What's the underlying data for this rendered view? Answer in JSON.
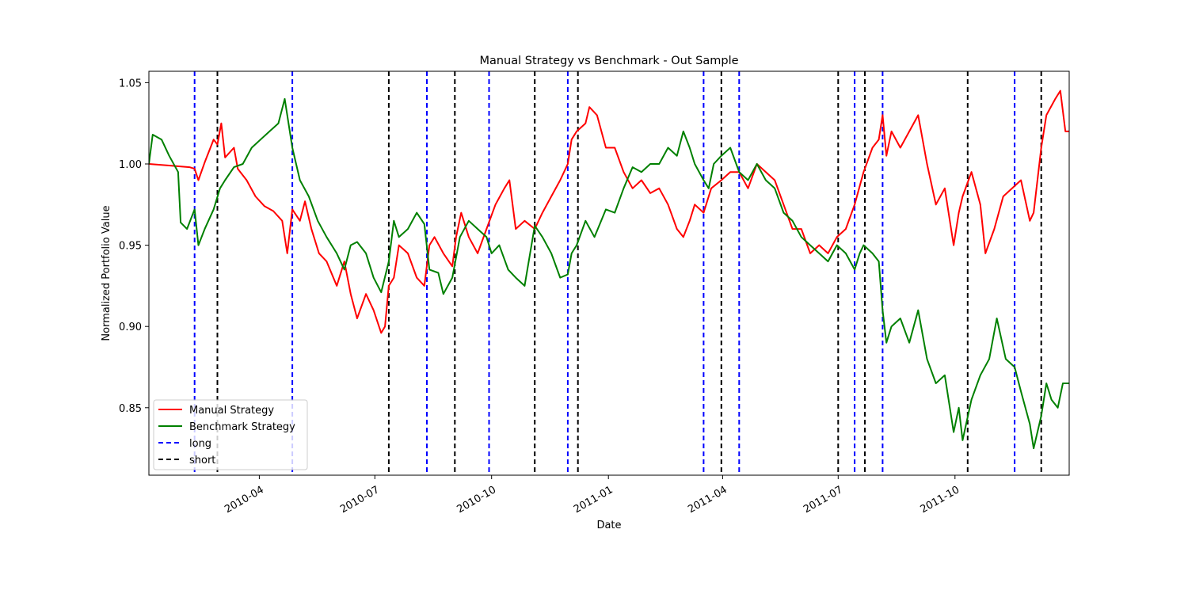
{
  "chart_data": {
    "type": "line",
    "title": "Manual Strategy vs Benchmark - Out Sample",
    "xlabel": "Date",
    "ylabel": "Normalized Portfolio Value",
    "xlim": [
      "2010-01-04",
      "2011-12-30"
    ],
    "ylim": [
      0.8085,
      1.057
    ],
    "y_ticks": [
      0.85,
      0.9,
      0.95,
      1.0,
      1.05
    ],
    "y_tick_labels": [
      "0.85",
      "0.90",
      "0.95",
      "1.00",
      "1.05"
    ],
    "x_ticks": [
      "2010-04-01",
      "2010-07-01",
      "2010-10-01",
      "2011-01-01",
      "2011-04-01",
      "2011-07-01",
      "2011-10-01"
    ],
    "x_tick_labels": [
      "2010-04",
      "2010-07",
      "2010-10",
      "2011-01",
      "2011-04",
      "2011-07",
      "2011-10"
    ],
    "grid": false,
    "legend_position": "lower-left",
    "series": [
      {
        "name": "Manual Strategy",
        "color": "#ff0000",
        "points": [
          [
            "2010-01-04",
            1.0
          ],
          [
            "2010-01-20",
            0.999
          ],
          [
            "2010-02-05",
            0.998
          ],
          [
            "2010-02-09",
            0.997
          ],
          [
            "2010-02-12",
            0.99
          ],
          [
            "2010-02-17",
            1.001
          ],
          [
            "2010-02-24",
            1.015
          ],
          [
            "2010-02-27",
            1.012
          ],
          [
            "2010-03-02",
            1.025
          ],
          [
            "2010-03-05",
            1.004
          ],
          [
            "2010-03-12",
            1.01
          ],
          [
            "2010-03-15",
            0.997
          ],
          [
            "2010-03-22",
            0.99
          ],
          [
            "2010-03-29",
            0.98
          ],
          [
            "2010-04-05",
            0.974
          ],
          [
            "2010-04-12",
            0.971
          ],
          [
            "2010-04-19",
            0.965
          ],
          [
            "2010-04-23",
            0.945
          ],
          [
            "2010-04-27",
            0.972
          ],
          [
            "2010-05-03",
            0.965
          ],
          [
            "2010-05-07",
            0.977
          ],
          [
            "2010-05-12",
            0.96
          ],
          [
            "2010-05-18",
            0.945
          ],
          [
            "2010-05-24",
            0.94
          ],
          [
            "2010-06-01",
            0.925
          ],
          [
            "2010-06-07",
            0.94
          ],
          [
            "2010-06-12",
            0.92
          ],
          [
            "2010-06-17",
            0.905
          ],
          [
            "2010-06-24",
            0.92
          ],
          [
            "2010-06-30",
            0.91
          ],
          [
            "2010-07-06",
            0.896
          ],
          [
            "2010-07-09",
            0.9
          ],
          [
            "2010-07-12",
            0.925
          ],
          [
            "2010-07-16",
            0.93
          ],
          [
            "2010-07-20",
            0.95
          ],
          [
            "2010-07-27",
            0.945
          ],
          [
            "2010-08-03",
            0.93
          ],
          [
            "2010-08-09",
            0.925
          ],
          [
            "2010-08-13",
            0.95
          ],
          [
            "2010-08-17",
            0.955
          ],
          [
            "2010-08-24",
            0.945
          ],
          [
            "2010-08-31",
            0.937
          ],
          [
            "2010-09-03",
            0.955
          ],
          [
            "2010-09-07",
            0.97
          ],
          [
            "2010-09-13",
            0.955
          ],
          [
            "2010-09-20",
            0.945
          ],
          [
            "2010-09-27",
            0.96
          ],
          [
            "2010-10-04",
            0.975
          ],
          [
            "2010-10-11",
            0.985
          ],
          [
            "2010-10-15",
            0.99
          ],
          [
            "2010-10-20",
            0.96
          ],
          [
            "2010-10-27",
            0.965
          ],
          [
            "2010-11-04",
            0.96
          ],
          [
            "2010-11-10",
            0.97
          ],
          [
            "2010-11-17",
            0.98
          ],
          [
            "2010-11-24",
            0.99
          ],
          [
            "2010-11-30",
            1.0
          ],
          [
            "2010-12-03",
            1.015
          ],
          [
            "2010-12-07",
            1.02
          ],
          [
            "2010-12-14",
            1.025
          ],
          [
            "2010-12-17",
            1.035
          ],
          [
            "2010-12-23",
            1.03
          ],
          [
            "2010-12-30",
            1.01
          ],
          [
            "2011-01-06",
            1.01
          ],
          [
            "2011-01-13",
            0.995
          ],
          [
            "2011-01-20",
            0.985
          ],
          [
            "2011-01-27",
            0.99
          ],
          [
            "2011-02-03",
            0.982
          ],
          [
            "2011-02-10",
            0.985
          ],
          [
            "2011-02-17",
            0.975
          ],
          [
            "2011-02-24",
            0.96
          ],
          [
            "2011-03-01",
            0.955
          ],
          [
            "2011-03-06",
            0.965
          ],
          [
            "2011-03-10",
            0.975
          ],
          [
            "2011-03-17",
            0.97
          ],
          [
            "2011-03-23",
            0.985
          ],
          [
            "2011-03-31",
            0.99
          ],
          [
            "2011-04-07",
            0.995
          ],
          [
            "2011-04-14",
            0.995
          ],
          [
            "2011-04-21",
            0.985
          ],
          [
            "2011-04-28",
            1.0
          ],
          [
            "2011-05-05",
            0.995
          ],
          [
            "2011-05-12",
            0.99
          ],
          [
            "2011-05-19",
            0.975
          ],
          [
            "2011-05-26",
            0.96
          ],
          [
            "2011-06-02",
            0.96
          ],
          [
            "2011-06-09",
            0.945
          ],
          [
            "2011-06-16",
            0.95
          ],
          [
            "2011-06-23",
            0.945
          ],
          [
            "2011-06-30",
            0.955
          ],
          [
            "2011-07-07",
            0.96
          ],
          [
            "2011-07-14",
            0.975
          ],
          [
            "2011-07-21",
            0.995
          ],
          [
            "2011-07-28",
            1.01
          ],
          [
            "2011-08-02",
            1.015
          ],
          [
            "2011-08-05",
            1.03
          ],
          [
            "2011-08-08",
            1.005
          ],
          [
            "2011-08-12",
            1.02
          ],
          [
            "2011-08-19",
            1.01
          ],
          [
            "2011-08-26",
            1.02
          ],
          [
            "2011-09-02",
            1.03
          ],
          [
            "2011-09-09",
            1.0
          ],
          [
            "2011-09-16",
            0.975
          ],
          [
            "2011-09-23",
            0.985
          ],
          [
            "2011-09-30",
            0.95
          ],
          [
            "2011-10-04",
            0.97
          ],
          [
            "2011-10-07",
            0.98
          ],
          [
            "2011-10-14",
            0.995
          ],
          [
            "2011-10-21",
            0.975
          ],
          [
            "2011-10-25",
            0.945
          ],
          [
            "2011-11-01",
            0.96
          ],
          [
            "2011-11-08",
            0.98
          ],
          [
            "2011-11-15",
            0.985
          ],
          [
            "2011-11-22",
            0.99
          ],
          [
            "2011-11-29",
            0.965
          ],
          [
            "2011-12-02",
            0.97
          ],
          [
            "2011-12-08",
            1.01
          ],
          [
            "2011-12-12",
            1.03
          ],
          [
            "2011-12-19",
            1.04
          ],
          [
            "2011-12-23",
            1.045
          ],
          [
            "2011-12-27",
            1.02
          ],
          [
            "2011-12-30",
            1.02
          ]
        ]
      },
      {
        "name": "Benchmark Strategy",
        "color": "#008000",
        "points": [
          [
            "2010-01-04",
            1.0
          ],
          [
            "2010-01-07",
            1.018
          ],
          [
            "2010-01-14",
            1.015
          ],
          [
            "2010-01-20",
            1.005
          ],
          [
            "2010-01-27",
            0.995
          ],
          [
            "2010-01-29",
            0.964
          ],
          [
            "2010-02-03",
            0.96
          ],
          [
            "2010-02-09",
            0.972
          ],
          [
            "2010-02-12",
            0.95
          ],
          [
            "2010-02-17",
            0.96
          ],
          [
            "2010-02-24",
            0.972
          ],
          [
            "2010-03-01",
            0.985
          ],
          [
            "2010-03-05",
            0.99
          ],
          [
            "2010-03-12",
            0.998
          ],
          [
            "2010-03-19",
            1.0
          ],
          [
            "2010-03-26",
            1.01
          ],
          [
            "2010-04-02",
            1.015
          ],
          [
            "2010-04-09",
            1.02
          ],
          [
            "2010-04-16",
            1.025
          ],
          [
            "2010-04-21",
            1.04
          ],
          [
            "2010-04-27",
            1.01
          ],
          [
            "2010-05-03",
            0.99
          ],
          [
            "2010-05-10",
            0.98
          ],
          [
            "2010-05-17",
            0.965
          ],
          [
            "2010-05-24",
            0.955
          ],
          [
            "2010-06-01",
            0.945
          ],
          [
            "2010-06-07",
            0.935
          ],
          [
            "2010-06-12",
            0.95
          ],
          [
            "2010-06-17",
            0.952
          ],
          [
            "2010-06-24",
            0.945
          ],
          [
            "2010-06-30",
            0.93
          ],
          [
            "2010-07-06",
            0.921
          ],
          [
            "2010-07-12",
            0.94
          ],
          [
            "2010-07-16",
            0.965
          ],
          [
            "2010-07-20",
            0.955
          ],
          [
            "2010-07-27",
            0.96
          ],
          [
            "2010-08-03",
            0.97
          ],
          [
            "2010-08-09",
            0.963
          ],
          [
            "2010-08-13",
            0.935
          ],
          [
            "2010-08-20",
            0.933
          ],
          [
            "2010-08-24",
            0.92
          ],
          [
            "2010-08-31",
            0.93
          ],
          [
            "2010-09-06",
            0.955
          ],
          [
            "2010-09-13",
            0.965
          ],
          [
            "2010-09-20",
            0.96
          ],
          [
            "2010-09-27",
            0.955
          ],
          [
            "2010-10-01",
            0.945
          ],
          [
            "2010-10-07",
            0.95
          ],
          [
            "2010-10-14",
            0.935
          ],
          [
            "2010-10-20",
            0.93
          ],
          [
            "2010-10-27",
            0.925
          ],
          [
            "2010-11-04",
            0.962
          ],
          [
            "2010-11-10",
            0.955
          ],
          [
            "2010-11-17",
            0.945
          ],
          [
            "2010-11-24",
            0.93
          ],
          [
            "2010-11-30",
            0.932
          ],
          [
            "2010-12-03",
            0.945
          ],
          [
            "2010-12-07",
            0.95
          ],
          [
            "2010-12-14",
            0.965
          ],
          [
            "2010-12-21",
            0.955
          ],
          [
            "2010-12-30",
            0.972
          ],
          [
            "2011-01-06",
            0.97
          ],
          [
            "2011-01-13",
            0.985
          ],
          [
            "2011-01-20",
            0.998
          ],
          [
            "2011-01-27",
            0.995
          ],
          [
            "2011-02-03",
            1.0
          ],
          [
            "2011-02-10",
            1.0
          ],
          [
            "2011-02-17",
            1.01
          ],
          [
            "2011-02-24",
            1.005
          ],
          [
            "2011-03-01",
            1.02
          ],
          [
            "2011-03-06",
            1.01
          ],
          [
            "2011-03-10",
            1.0
          ],
          [
            "2011-03-17",
            0.99
          ],
          [
            "2011-03-21",
            0.985
          ],
          [
            "2011-03-25",
            1.0
          ],
          [
            "2011-03-31",
            1.005
          ],
          [
            "2011-04-07",
            1.01
          ],
          [
            "2011-04-14",
            0.995
          ],
          [
            "2011-04-21",
            0.99
          ],
          [
            "2011-04-28",
            1.0
          ],
          [
            "2011-05-05",
            0.99
          ],
          [
            "2011-05-12",
            0.985
          ],
          [
            "2011-05-19",
            0.97
          ],
          [
            "2011-05-26",
            0.965
          ],
          [
            "2011-06-02",
            0.955
          ],
          [
            "2011-06-09",
            0.95
          ],
          [
            "2011-06-16",
            0.945
          ],
          [
            "2011-06-23",
            0.94
          ],
          [
            "2011-06-30",
            0.95
          ],
          [
            "2011-07-07",
            0.945
          ],
          [
            "2011-07-14",
            0.935
          ],
          [
            "2011-07-18",
            0.945
          ],
          [
            "2011-07-21",
            0.95
          ],
          [
            "2011-07-28",
            0.945
          ],
          [
            "2011-08-02",
            0.94
          ],
          [
            "2011-08-05",
            0.91
          ],
          [
            "2011-08-08",
            0.89
          ],
          [
            "2011-08-12",
            0.9
          ],
          [
            "2011-08-19",
            0.905
          ],
          [
            "2011-08-26",
            0.89
          ],
          [
            "2011-09-02",
            0.91
          ],
          [
            "2011-09-09",
            0.88
          ],
          [
            "2011-09-16",
            0.865
          ],
          [
            "2011-09-23",
            0.87
          ],
          [
            "2011-09-30",
            0.835
          ],
          [
            "2011-10-04",
            0.85
          ],
          [
            "2011-10-07",
            0.83
          ],
          [
            "2011-10-14",
            0.855
          ],
          [
            "2011-10-21",
            0.87
          ],
          [
            "2011-10-28",
            0.88
          ],
          [
            "2011-11-03",
            0.905
          ],
          [
            "2011-11-10",
            0.88
          ],
          [
            "2011-11-17",
            0.875
          ],
          [
            "2011-11-22",
            0.86
          ],
          [
            "2011-11-29",
            0.84
          ],
          [
            "2011-12-02",
            0.825
          ],
          [
            "2011-12-08",
            0.845
          ],
          [
            "2011-12-12",
            0.865
          ],
          [
            "2011-12-16",
            0.855
          ],
          [
            "2011-12-21",
            0.85
          ],
          [
            "2011-12-25",
            0.865
          ],
          [
            "2011-12-30",
            0.865
          ]
        ]
      }
    ],
    "signals": [
      {
        "name": "long",
        "color": "#0000ff",
        "style": "dashed",
        "dates": [
          "2010-02-09",
          "2010-04-27",
          "2010-08-11",
          "2010-09-29",
          "2010-11-30",
          "2011-03-17",
          "2011-04-14",
          "2011-07-14",
          "2011-08-05",
          "2011-11-17"
        ]
      },
      {
        "name": "short",
        "color": "#000000",
        "style": "dashed",
        "dates": [
          "2010-02-27",
          "2010-07-12",
          "2010-09-02",
          "2010-11-04",
          "2010-12-08",
          "2011-03-31",
          "2011-07-01",
          "2011-07-22",
          "2011-10-11",
          "2011-12-08"
        ]
      }
    ],
    "legend": [
      "Manual Strategy",
      "Benchmark Strategy",
      "long",
      "short"
    ]
  }
}
